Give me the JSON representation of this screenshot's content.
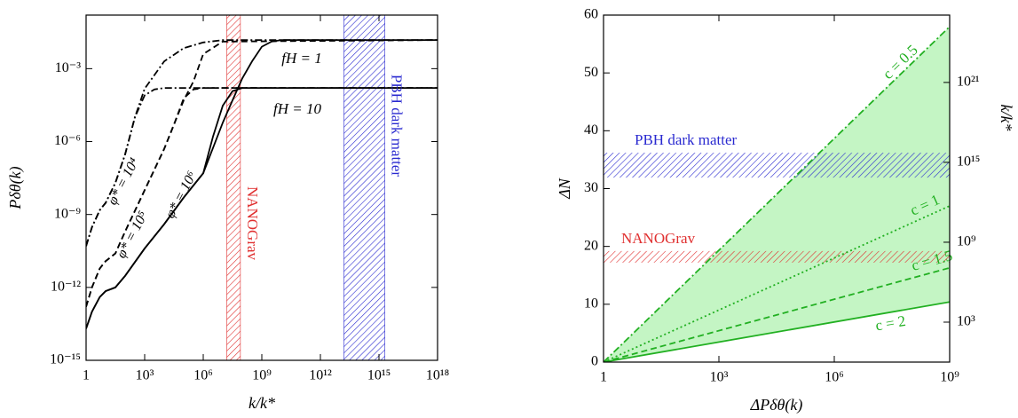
{
  "chart_data": [
    {
      "type": "line",
      "x_label": "k/k*",
      "y_label": "Pδθ(k)",
      "log_x": true,
      "log_y": true,
      "xlim": [
        1,
        1e+18
      ],
      "ylim": [
        1e-15,
        0.16
      ],
      "xticks": [
        {
          "value": 1,
          "label": "1"
        },
        {
          "value": 1000,
          "label": "10³"
        },
        {
          "value": 1000000,
          "label": "10⁶"
        },
        {
          "value": 1000000000.0,
          "label": "10⁹"
        },
        {
          "value": 1000000000000.0,
          "label": "10¹²"
        },
        {
          "value": 1000000000000000.0,
          "label": "10¹⁵"
        },
        {
          "value": 1e+18,
          "label": "10¹⁸"
        }
      ],
      "yticks": [
        {
          "value": 1e-15,
          "label": "10⁻¹⁵"
        },
        {
          "value": 1e-12,
          "label": "10⁻¹²"
        },
        {
          "value": 1e-09,
          "label": "10⁻⁹"
        },
        {
          "value": 1e-06,
          "label": "10⁻⁶"
        },
        {
          "value": 0.001,
          "label": "10⁻³"
        }
      ],
      "series": [
        {
          "color": "#000000",
          "dash": "solid",
          "x": [
            1,
            2,
            5,
            10,
            31.6,
            100,
            1000,
            10000,
            100000,
            1000000,
            10000000.0,
            31600000.0,
            100000000.0,
            316000000.0,
            1000000000.0,
            3160000000.0,
            10000000000.0,
            1e+18
          ],
          "values": [
            2e-14,
            1e-13,
            4e-13,
            7e-13,
            1e-12,
            3e-12,
            4e-11,
            4e-10,
            5e-09,
            5e-08,
            6e-06,
            5e-05,
            0.0004,
            0.002,
            0.008,
            0.013,
            0.015,
            0.015
          ]
        },
        {
          "color": "#000000",
          "dash": "solid",
          "x": [
            1,
            2,
            5,
            10,
            31.6,
            100,
            1000,
            10000,
            100000,
            1000000,
            3160000.0,
            10000000.0,
            31600000.0,
            100000000.0,
            1e+18
          ],
          "values": [
            2e-14,
            1e-13,
            4e-13,
            7e-13,
            1e-12,
            3e-12,
            4e-11,
            4e-10,
            5e-09,
            5e-08,
            1.6e-06,
            3e-05,
            0.00012,
            0.00016,
            0.00016
          ]
        },
        {
          "color": "#000000",
          "dash": "dashed",
          "x": [
            1,
            2,
            5,
            10,
            31.6,
            100,
            1000,
            10000,
            31600,
            100000,
            316000,
            1000000,
            10000000.0,
            1e+18
          ],
          "values": [
            1.6e-13,
            1e-12,
            6e-12,
            1.2e-11,
            2.5e-11,
            2e-10,
            1e-08,
            5e-07,
            5e-06,
            5e-05,
            0.0003,
            0.004,
            0.013,
            0.015
          ]
        },
        {
          "color": "#000000",
          "dash": "dashed",
          "x": [
            1,
            2,
            5,
            10,
            31.6,
            100,
            1000,
            10000,
            31600,
            100000,
            316000,
            1000000,
            1e+18
          ],
          "values": [
            1.6e-13,
            1e-12,
            6e-12,
            1.2e-11,
            2.5e-11,
            2e-10,
            1e-08,
            5e-07,
            5e-06,
            6e-05,
            0.00014,
            0.00016,
            0.00016
          ]
        },
        {
          "color": "#000000",
          "dash": "dashdot",
          "x": [
            1,
            2,
            5,
            10,
            31.6,
            100,
            316,
            1000,
            10000,
            100000,
            1000000,
            10000000.0,
            1e+18
          ],
          "values": [
            5e-11,
            3e-10,
            1.5e-09,
            3e-09,
            2e-08,
            3e-07,
            1e-05,
            0.00015,
            0.002,
            0.007,
            0.012,
            0.015,
            0.015
          ]
        },
        {
          "color": "#000000",
          "dash": "dashdot",
          "x": [
            1,
            2,
            5,
            10,
            31.6,
            100,
            316,
            1000,
            3160,
            10000,
            1e+18
          ],
          "values": [
            5e-11,
            3e-10,
            1.5e-09,
            3e-09,
            2e-08,
            3e-07,
            1e-05,
            8e-05,
            0.00014,
            0.00016,
            0.00016
          ]
        }
      ],
      "bands": [
        {
          "label": "NANOGrav",
          "color": "#e03030",
          "xlim": [
            16000000.0,
            80000000.0
          ]
        },
        {
          "label": "PBH dark matter",
          "color": "#2a2ad0",
          "xlim": [
            16000000000000.0,
            2000000000000000.0
          ]
        }
      ],
      "annotations": [
        "fH = 1",
        "fH = 10"
      ],
      "curve_labels": [
        "φ* = 10⁴",
        "φ* = 10⁵",
        "φ* = 10⁶"
      ]
    },
    {
      "type": "line",
      "x_label": "ΔPδθ(k)",
      "y_label": "ΔN",
      "y2_label": "k/k*",
      "log_x": true,
      "log_y2": true,
      "xlim": [
        1,
        1000000000.0
      ],
      "ylim": [
        0,
        60
      ],
      "y2lim": [
        1,
        1.142e+26
      ],
      "xticks": [
        {
          "value": 1,
          "label": "1"
        },
        {
          "value": 1000,
          "label": "10³"
        },
        {
          "value": 1000000,
          "label": "10⁶"
        },
        {
          "value": 1000000000.0,
          "label": "10⁹"
        }
      ],
      "yticks": [
        0,
        10,
        20,
        30,
        40,
        50,
        60
      ],
      "y2ticks": [
        {
          "value": 1000,
          "label": "10³"
        },
        {
          "value": 1000000000.0,
          "label": "10⁹"
        },
        {
          "value": 1000000000000000.0,
          "label": "10¹⁵"
        },
        {
          "value": 1e+21,
          "label": "10²¹"
        }
      ],
      "fill": "#c4f5c4",
      "series": [
        {
          "name": "c = 0.5",
          "color": "#22b022",
          "dash": "dashdot",
          "x": [
            1,
            1000000000.0
          ],
          "values": [
            0,
            58
          ]
        },
        {
          "name": "c = 1",
          "color": "#22b022",
          "dash": "dotted",
          "x": [
            1,
            1000000000.0
          ],
          "values": [
            0,
            27
          ]
        },
        {
          "name": "c = 1.5",
          "color": "#22b022",
          "dash": "dashed",
          "x": [
            1,
            1000000000.0
          ],
          "values": [
            0,
            16.3
          ]
        },
        {
          "name": "c = 2",
          "color": "#22b022",
          "dash": "solid",
          "x": [
            1,
            1000000000.0
          ],
          "values": [
            0,
            10.4
          ]
        }
      ],
      "bands": [
        {
          "label": "PBH dark matter",
          "color": "#2a2ad0",
          "ylim": [
            31.9,
            36.2
          ]
        },
        {
          "label": "NANOGrav",
          "color": "#e03030",
          "ylim": [
            17.2,
            19.2
          ]
        }
      ]
    }
  ]
}
